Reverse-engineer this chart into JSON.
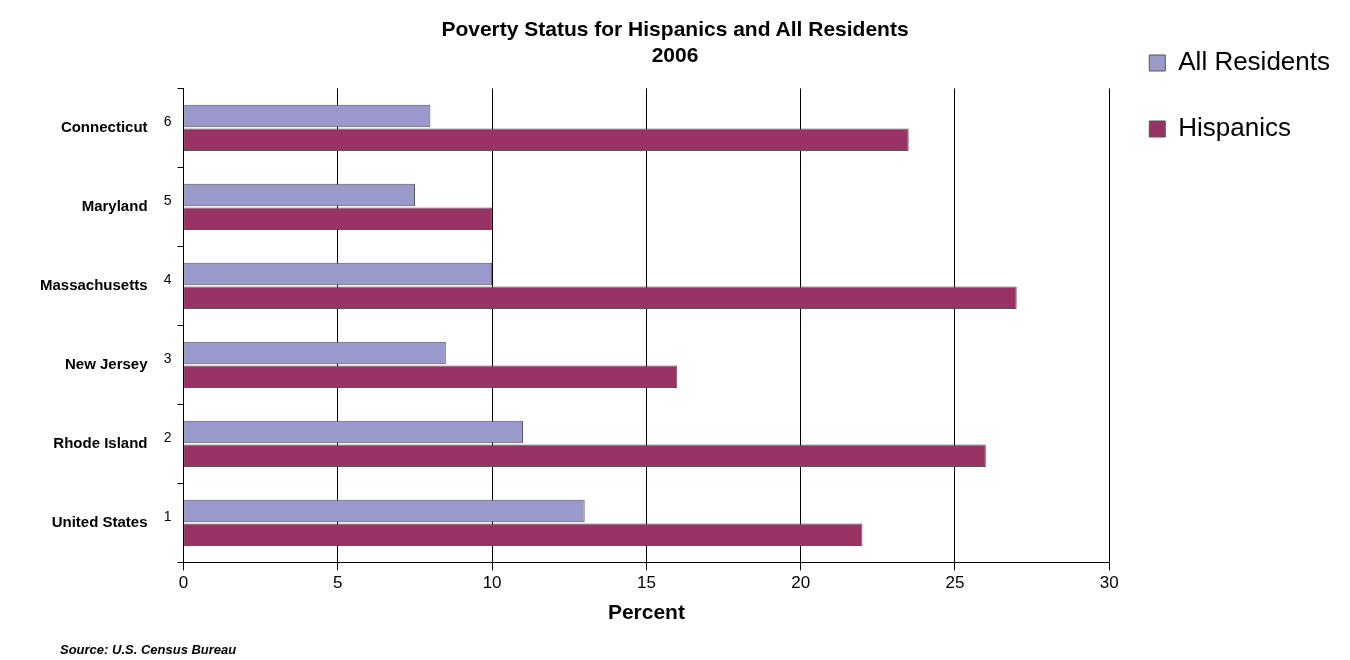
{
  "chart_data": {
    "type": "bar",
    "orientation": "horizontal",
    "title": "Poverty Status for Hispanics and All Residents\n2006",
    "xlabel": "Percent",
    "categories": [
      "Connecticut",
      "Maryland",
      "Massachusetts",
      "New Jersey",
      "Rhode Island",
      "United States"
    ],
    "series": [
      {
        "name": "All Residents",
        "color": "#9999cc",
        "values": [
          8,
          7.5,
          10,
          8.5,
          11,
          13
        ]
      },
      {
        "name": "Hispanics",
        "color": "#993366",
        "values": [
          23.5,
          10,
          27,
          16,
          26,
          22
        ]
      }
    ],
    "xlim": [
      0,
      30
    ],
    "xticks": [
      0,
      5,
      10,
      15,
      20,
      25,
      30
    ],
    "grid": "x",
    "legend": "top right",
    "annotations": [
      "6",
      "5",
      "4",
      "3",
      "2",
      "1",
      "Source: U.S. Census Bureau"
    ]
  }
}
